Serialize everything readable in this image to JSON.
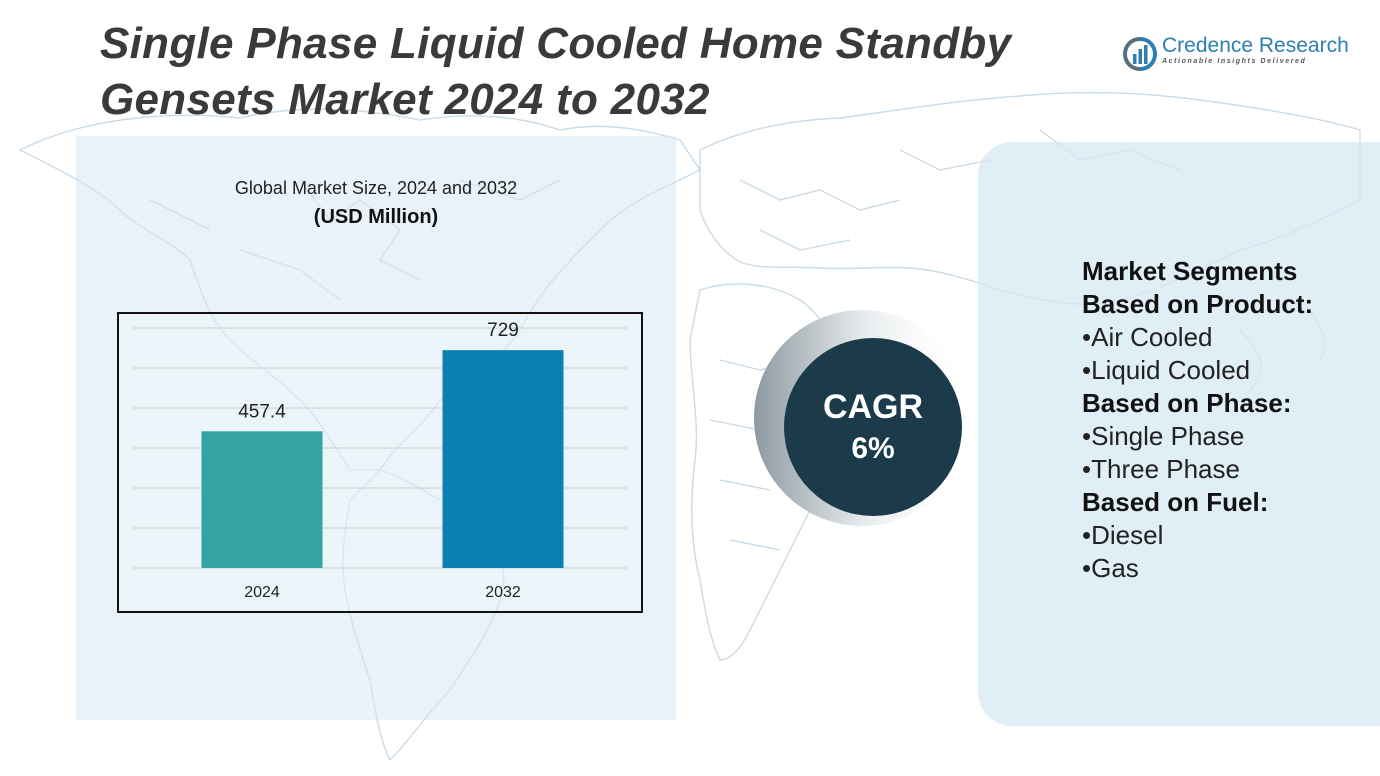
{
  "title": {
    "line1": "Single Phase Liquid Cooled Home Standby",
    "line2": "Gensets Market 2024 to 2032"
  },
  "logo": {
    "name": "Credence Research",
    "tagline": "Actionable Insights Delivered"
  },
  "chart_title": {
    "line1": "Global Market Size, 2024 and 2032",
    "line2": "(USD Million)"
  },
  "chart_data": {
    "type": "bar",
    "title": "Global Market Size, 2024 and 2032 (USD Million)",
    "categories": [
      "2024",
      "2032"
    ],
    "values": [
      457.4,
      729
    ],
    "value_labels": [
      "457.4",
      "729"
    ],
    "colors": [
      "#33a3a3",
      "#0a7fb0"
    ],
    "xlabel": "",
    "ylabel": "USD Million",
    "ylim": [
      0,
      850
    ],
    "grid": true
  },
  "cagr": {
    "label": "CAGR",
    "value": "6%"
  },
  "segments": {
    "title": "Market Segments",
    "groups": [
      {
        "heading": "Based on Product:",
        "items": [
          "•Air Cooled",
          "•Liquid Cooled"
        ]
      },
      {
        "heading": "Based on Phase:",
        "items": [
          "•Single Phase",
          "•Three Phase"
        ]
      },
      {
        "heading": "Based on Fuel:",
        "items": [
          "•Diesel",
          "•Gas"
        ]
      }
    ]
  },
  "colors": {
    "title_text": "#3a3a3a",
    "brand_blue": "#2c7fb0",
    "cagr_circle": "#1b3a4a",
    "panel_bg": "#d6e8f3"
  }
}
